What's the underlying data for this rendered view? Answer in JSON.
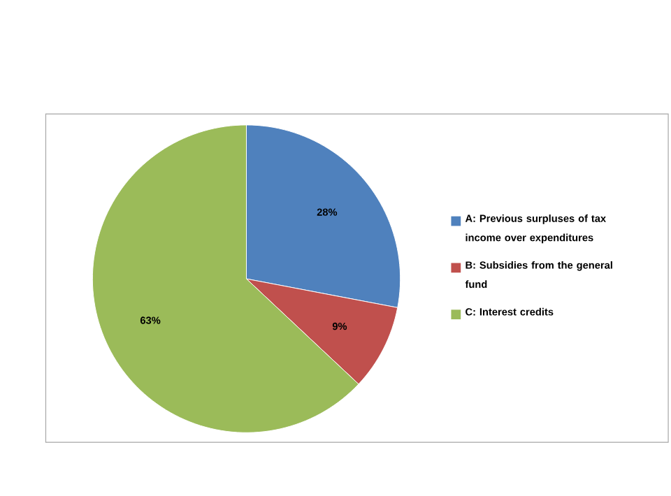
{
  "chart_data": {
    "type": "pie",
    "categories": [
      "A: Previous surpluses of tax income over expenditures",
      "B: Subsidies from the general fund",
      "C: Interest credits"
    ],
    "values": [
      28,
      9,
      63
    ],
    "colors": [
      "#4f81bd",
      "#c0504d",
      "#9bbb59"
    ],
    "value_labels": [
      "28%",
      "9%",
      "63%"
    ],
    "legend": "right"
  }
}
